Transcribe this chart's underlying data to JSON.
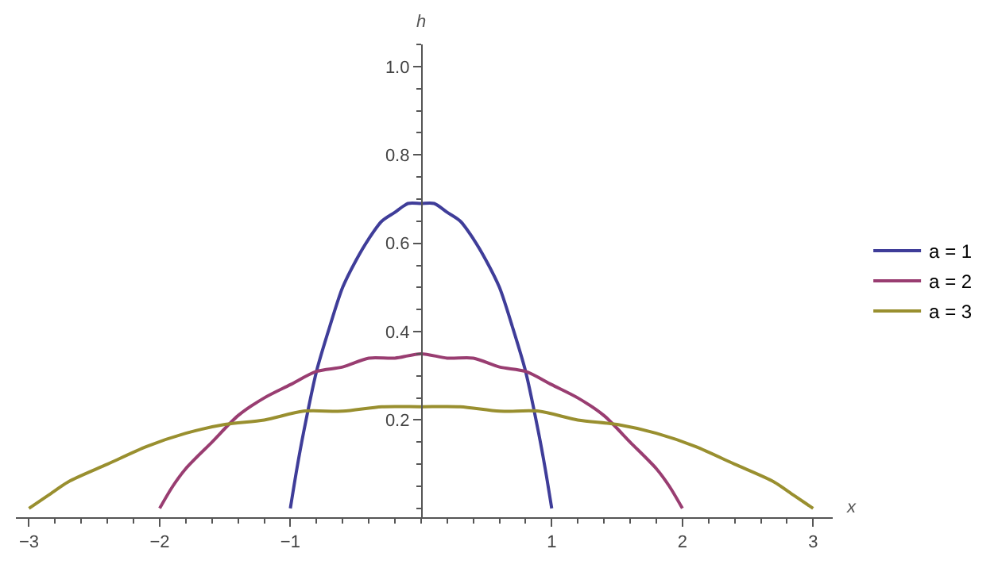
{
  "chart_data": {
    "type": "line",
    "xlabel": "x",
    "ylabel": "h",
    "xlim": [
      -3.1,
      3.15
    ],
    "ylim": [
      -0.02,
      1.05
    ],
    "xticks": [
      {
        "value": -3,
        "label": "−3"
      },
      {
        "value": -2,
        "label": "−2"
      },
      {
        "value": -1,
        "label": "−1"
      },
      1,
      2,
      3
    ],
    "yticks": [
      0.2,
      0.4,
      0.6,
      0.8,
      {
        "value": 1.0,
        "label": "1.0"
      }
    ],
    "legend": "right",
    "line_style": "solid",
    "marker": "none",
    "series": [
      {
        "name": "a = 1",
        "color": "#3f3d99",
        "x": [
          -1,
          -0.95,
          -0.9,
          -0.8,
          -0.7,
          -0.6,
          -0.5,
          -0.4,
          -0.3,
          -0.2,
          -0.1,
          0,
          0.1,
          0.2,
          0.3,
          0.4,
          0.5,
          0.6,
          0.7,
          0.8,
          0.9,
          0.95,
          1
        ],
        "values": [
          0,
          0.09,
          0.17,
          0.31,
          0.41,
          0.5,
          0.56,
          0.61,
          0.65,
          0.67,
          0.69,
          0.69,
          0.69,
          0.67,
          0.65,
          0.61,
          0.56,
          0.5,
          0.41,
          0.31,
          0.17,
          0.09,
          0
        ]
      },
      {
        "name": "a = 2",
        "color": "#993d71",
        "x": [
          -2,
          -1.9,
          -1.8,
          -1.6,
          -1.4,
          -1.2,
          -1.0,
          -0.8,
          -0.6,
          -0.4,
          -0.2,
          0,
          0.2,
          0.4,
          0.6,
          0.8,
          1.0,
          1.2,
          1.4,
          1.6,
          1.8,
          1.9,
          2
        ],
        "values": [
          0,
          0.05,
          0.09,
          0.15,
          0.21,
          0.25,
          0.28,
          0.31,
          0.32,
          0.34,
          0.34,
          0.35,
          0.34,
          0.34,
          0.32,
          0.31,
          0.28,
          0.25,
          0.21,
          0.15,
          0.09,
          0.05,
          0
        ]
      },
      {
        "name": "a = 3",
        "color": "#998f2f",
        "x": [
          -3,
          -2.85,
          -2.7,
          -2.4,
          -2.1,
          -1.8,
          -1.5,
          -1.2,
          -0.9,
          -0.6,
          -0.3,
          0,
          0.3,
          0.6,
          0.9,
          1.2,
          1.5,
          1.8,
          2.1,
          2.4,
          2.7,
          2.85,
          3
        ],
        "values": [
          0,
          0.03,
          0.06,
          0.1,
          0.14,
          0.17,
          0.19,
          0.2,
          0.22,
          0.22,
          0.23,
          0.23,
          0.23,
          0.22,
          0.22,
          0.2,
          0.19,
          0.17,
          0.14,
          0.1,
          0.06,
          0.03,
          0
        ]
      }
    ]
  }
}
